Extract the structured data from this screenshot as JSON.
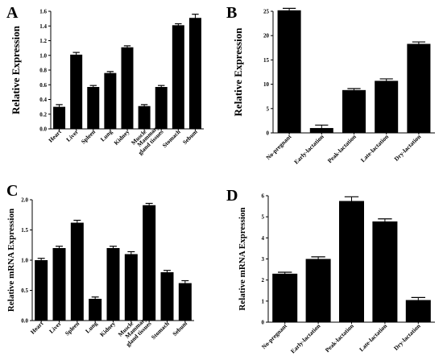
{
  "chart_data": [
    {
      "panel": "A",
      "type": "bar",
      "ylabel": "Relative Expression",
      "ylim": [
        0,
        1.6
      ],
      "yticks": [
        "0.0",
        "0.2",
        "0.4",
        "0.6",
        "0.8",
        "1.0",
        "1.2",
        "1.4",
        "1.6"
      ],
      "categories": [
        "Heart",
        "Liver",
        "Spleen",
        "Lung",
        "Kidney",
        "Muscle",
        "Mammary gland tissues",
        "Stomach",
        "Sebum"
      ],
      "category_lines": [
        [
          "Heart"
        ],
        [
          "Liver"
        ],
        [
          "Spleen"
        ],
        [
          "Lung"
        ],
        [
          "Kidney"
        ],
        [
          "Muscle"
        ],
        [
          "Mammary",
          "gland tissues"
        ],
        [
          "Stomach"
        ],
        [
          "Sebum"
        ]
      ],
      "values": [
        0.3,
        1.01,
        0.57,
        0.76,
        1.11,
        0.31,
        0.57,
        1.41,
        1.51
      ],
      "errors": [
        0.03,
        0.03,
        0.02,
        0.02,
        0.02,
        0.02,
        0.02,
        0.02,
        0.05
      ],
      "color": "#000000"
    },
    {
      "panel": "B",
      "type": "bar",
      "ylabel": "Relative Expression",
      "ylim": [
        0,
        25
      ],
      "yticks": [
        "0",
        "5",
        "10",
        "15",
        "20",
        "25"
      ],
      "categories": [
        "No-pregnant",
        "Early-lactation",
        "Peak-lactation",
        "Late-lactation",
        "Dry-lactation"
      ],
      "category_lines": [
        [
          "No-pregnant"
        ],
        [
          "Early-lactation"
        ],
        [
          "Peak-lactation"
        ],
        [
          "Late-lactation"
        ],
        [
          "Dry-lactation"
        ]
      ],
      "values": [
        25.2,
        1.0,
        8.8,
        10.7,
        18.3
      ],
      "errors": [
        0.4,
        0.6,
        0.3,
        0.4,
        0.4
      ],
      "color": "#000000"
    },
    {
      "panel": "C",
      "type": "bar",
      "ylabel": "Relative mRNA Expression",
      "ylim": [
        0,
        2.0
      ],
      "yticks": [
        "0.0",
        "0.5",
        "1.0",
        "1.5",
        "2.0"
      ],
      "categories": [
        "Heart",
        "Liver",
        "Spleen",
        "Lung",
        "Kidney",
        "Muscle",
        "Mammary gland tissues",
        "Stomach",
        "Sebum"
      ],
      "category_lines": [
        [
          "Heart"
        ],
        [
          "Liver"
        ],
        [
          "Spleen"
        ],
        [
          "Lung"
        ],
        [
          "Kidney"
        ],
        [
          "Muscle"
        ],
        [
          "Mammary",
          "gland tissues"
        ],
        [
          "Stomach"
        ],
        [
          "Sebum"
        ]
      ],
      "values": [
        1.0,
        1.2,
        1.62,
        0.36,
        1.2,
        1.1,
        1.91,
        0.8,
        0.62
      ],
      "errors": [
        0.03,
        0.03,
        0.04,
        0.03,
        0.03,
        0.04,
        0.03,
        0.03,
        0.04
      ],
      "color": "#000000"
    },
    {
      "panel": "D",
      "type": "bar",
      "ylabel": "Relative mRNA Expression",
      "ylim": [
        0,
        6
      ],
      "yticks": [
        "0",
        "1",
        "2",
        "3",
        "4",
        "5",
        "6"
      ],
      "categories": [
        "No-pregnant",
        "Early-lactation",
        "Peak-lactation",
        "Late-lactation",
        "Dry-lactation"
      ],
      "category_lines": [
        [
          "No-pregnant"
        ],
        [
          "Early-lactation"
        ],
        [
          "Peak-lactation"
        ],
        [
          "Late-lactation"
        ],
        [
          "Dry-lactation"
        ]
      ],
      "values": [
        2.3,
        3.0,
        5.75,
        4.78,
        1.05
      ],
      "errors": [
        0.07,
        0.1,
        0.2,
        0.12,
        0.12
      ],
      "color": "#000000"
    }
  ]
}
